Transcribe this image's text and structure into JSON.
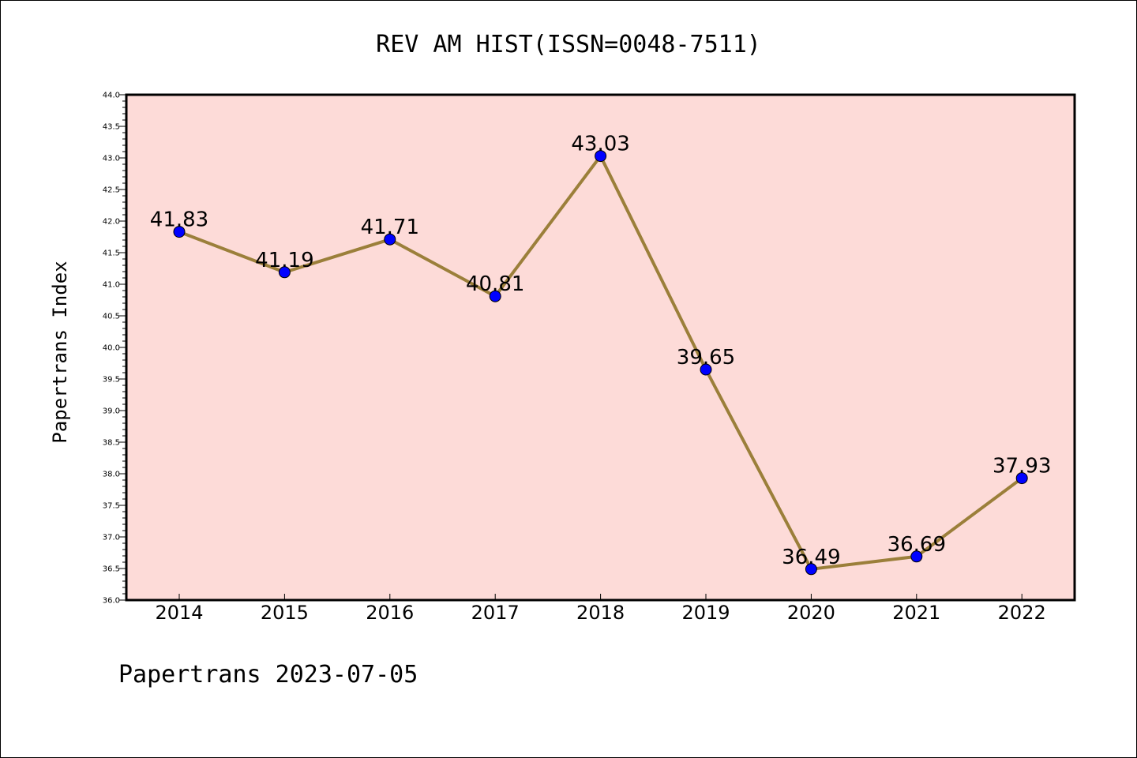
{
  "chart_data": {
    "type": "line",
    "title": "REV AM HIST(ISSN=0048-7511)",
    "ylabel": "Papertrans Index",
    "xlabel": "",
    "footer": "Papertrans 2023-07-05",
    "categories": [
      "2014",
      "2015",
      "2016",
      "2017",
      "2018",
      "2019",
      "2020",
      "2021",
      "2022"
    ],
    "values": [
      41.83,
      41.19,
      41.71,
      40.81,
      43.03,
      39.65,
      36.49,
      36.69,
      37.93
    ],
    "data_labels": [
      "41.83",
      "41.19",
      "41.71",
      "40.81",
      "43.03",
      "39.65",
      "36.49",
      "36.69",
      "37.93"
    ],
    "ylim": [
      36.0,
      44.0
    ],
    "yticks": [
      "36.0",
      "36.5",
      "37.0",
      "37.5",
      "38.0",
      "38.5",
      "39.0",
      "39.5",
      "40.0",
      "40.5",
      "41.0",
      "41.5",
      "42.0",
      "42.5",
      "43.0",
      "43.5",
      "44.0"
    ],
    "grid": false,
    "colors": {
      "plot_background": "#fddbd8",
      "line": "#9b7f3a",
      "marker": "#0000ff"
    }
  }
}
